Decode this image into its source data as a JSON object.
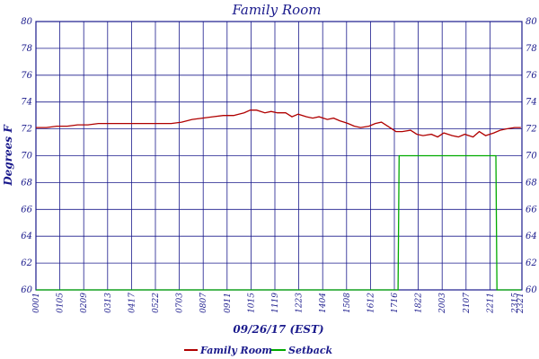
{
  "chart_data": {
    "type": "line",
    "title": "Family Room",
    "xlabel": "09/26/17 (EST)",
    "ylabel": "Degrees F",
    "ylim": [
      60,
      80
    ],
    "yticks": [
      60,
      62,
      64,
      66,
      68,
      70,
      72,
      74,
      76,
      78,
      80
    ],
    "x_tick_labels": [
      "0001",
      "0105",
      "0209",
      "0313",
      "0417",
      "0522",
      "0703",
      "0807",
      "0911",
      "1015",
      "1119",
      "1223",
      "1404",
      "1508",
      "1612",
      "1716",
      "1822",
      "2003",
      "2107",
      "2211",
      "2315",
      "2321"
    ],
    "grid": true,
    "legend_position": "bottom",
    "colors": {
      "frame": "#1a1a8c",
      "grid": "#1a1a8c",
      "family_room": "#b00000",
      "setback": "#00aa00"
    },
    "series": [
      {
        "name": "Family Room",
        "x": [
          0,
          0.5,
          1,
          1.5,
          2,
          2.5,
          3,
          3.5,
          4,
          4.5,
          5,
          5.5,
          6,
          6.5,
          7,
          7.5,
          8,
          8.5,
          9,
          9.5,
          10,
          10.3,
          10.6,
          11,
          11.3,
          11.6,
          12,
          12.3,
          12.6,
          13,
          13.3,
          13.6,
          14,
          14.3,
          14.6,
          15,
          15.3,
          15.6,
          16,
          16.3,
          16.6,
          17,
          17.3,
          17.6,
          18,
          18.3,
          18.6,
          19,
          19.3,
          19.6,
          20,
          20.3,
          20.6,
          21,
          21.3,
          21.6,
          22,
          22.3,
          22.6,
          23,
          23.3
        ],
        "y": [
          72.1,
          72.1,
          72.2,
          72.2,
          72.3,
          72.3,
          72.4,
          72.4,
          72.4,
          72.4,
          72.4,
          72.4,
          72.4,
          72.4,
          72.5,
          72.7,
          72.8,
          72.9,
          73.0,
          73.0,
          73.2,
          73.4,
          73.4,
          73.2,
          73.3,
          73.2,
          73.2,
          72.9,
          73.1,
          72.9,
          72.8,
          72.9,
          72.7,
          72.8,
          72.6,
          72.4,
          72.2,
          72.1,
          72.2,
          72.4,
          72.5,
          72.1,
          71.8,
          71.8,
          71.9,
          71.6,
          71.5,
          71.6,
          71.4,
          71.7,
          71.5,
          71.4,
          71.6,
          71.4,
          71.8,
          71.5,
          71.7,
          71.9,
          72.0,
          72.1,
          72.1
        ]
      },
      {
        "name": "Setback",
        "x": [
          0,
          17.4,
          17.45,
          22.1,
          22.15,
          23.3
        ],
        "y": [
          60,
          60,
          70,
          70,
          60,
          60
        ]
      }
    ]
  }
}
